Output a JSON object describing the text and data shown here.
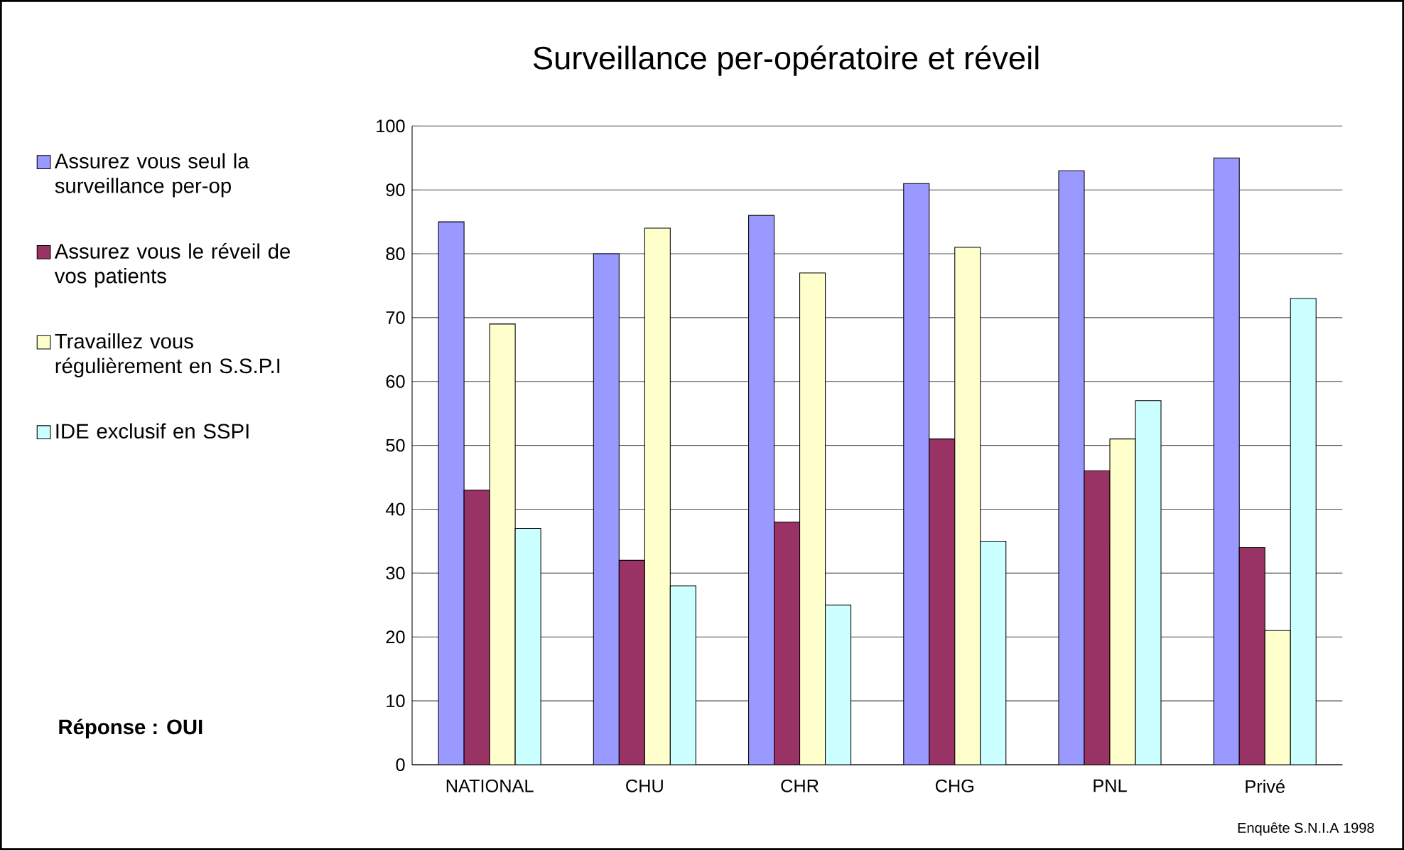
{
  "chart_data": {
    "type": "bar",
    "title": "Surveillance per-opératoire et réveil",
    "categories": [
      "NATIONAL",
      "CHU",
      "CHR",
      "CHG",
      "PNL",
      "Privé"
    ],
    "series": [
      {
        "name": "Assurez vous seul la surveillance per-op",
        "color": "#9999ff",
        "values": [
          85,
          80,
          86,
          91,
          93,
          95
        ]
      },
      {
        "name": "Assurez vous le réveil de vos patients",
        "color": "#993366",
        "values": [
          43,
          32,
          38,
          51,
          46,
          34
        ]
      },
      {
        "name": "Travaillez vous régulièrement en S.S.P.I",
        "color": "#ffffcc",
        "values": [
          69,
          84,
          77,
          81,
          51,
          21
        ]
      },
      {
        "name": "IDE exclusif en SSPI",
        "color": "#ccffff",
        "values": [
          37,
          28,
          25,
          35,
          57,
          73
        ]
      }
    ],
    "ylim": [
      0,
      100
    ],
    "yticks": [
      0,
      10,
      20,
      30,
      40,
      50,
      60,
      70,
      80,
      90,
      100
    ],
    "grid": "y",
    "legend": "left",
    "annotations": [
      "Réponse : OUI",
      "Enquête S.N.I.A 1998"
    ]
  }
}
